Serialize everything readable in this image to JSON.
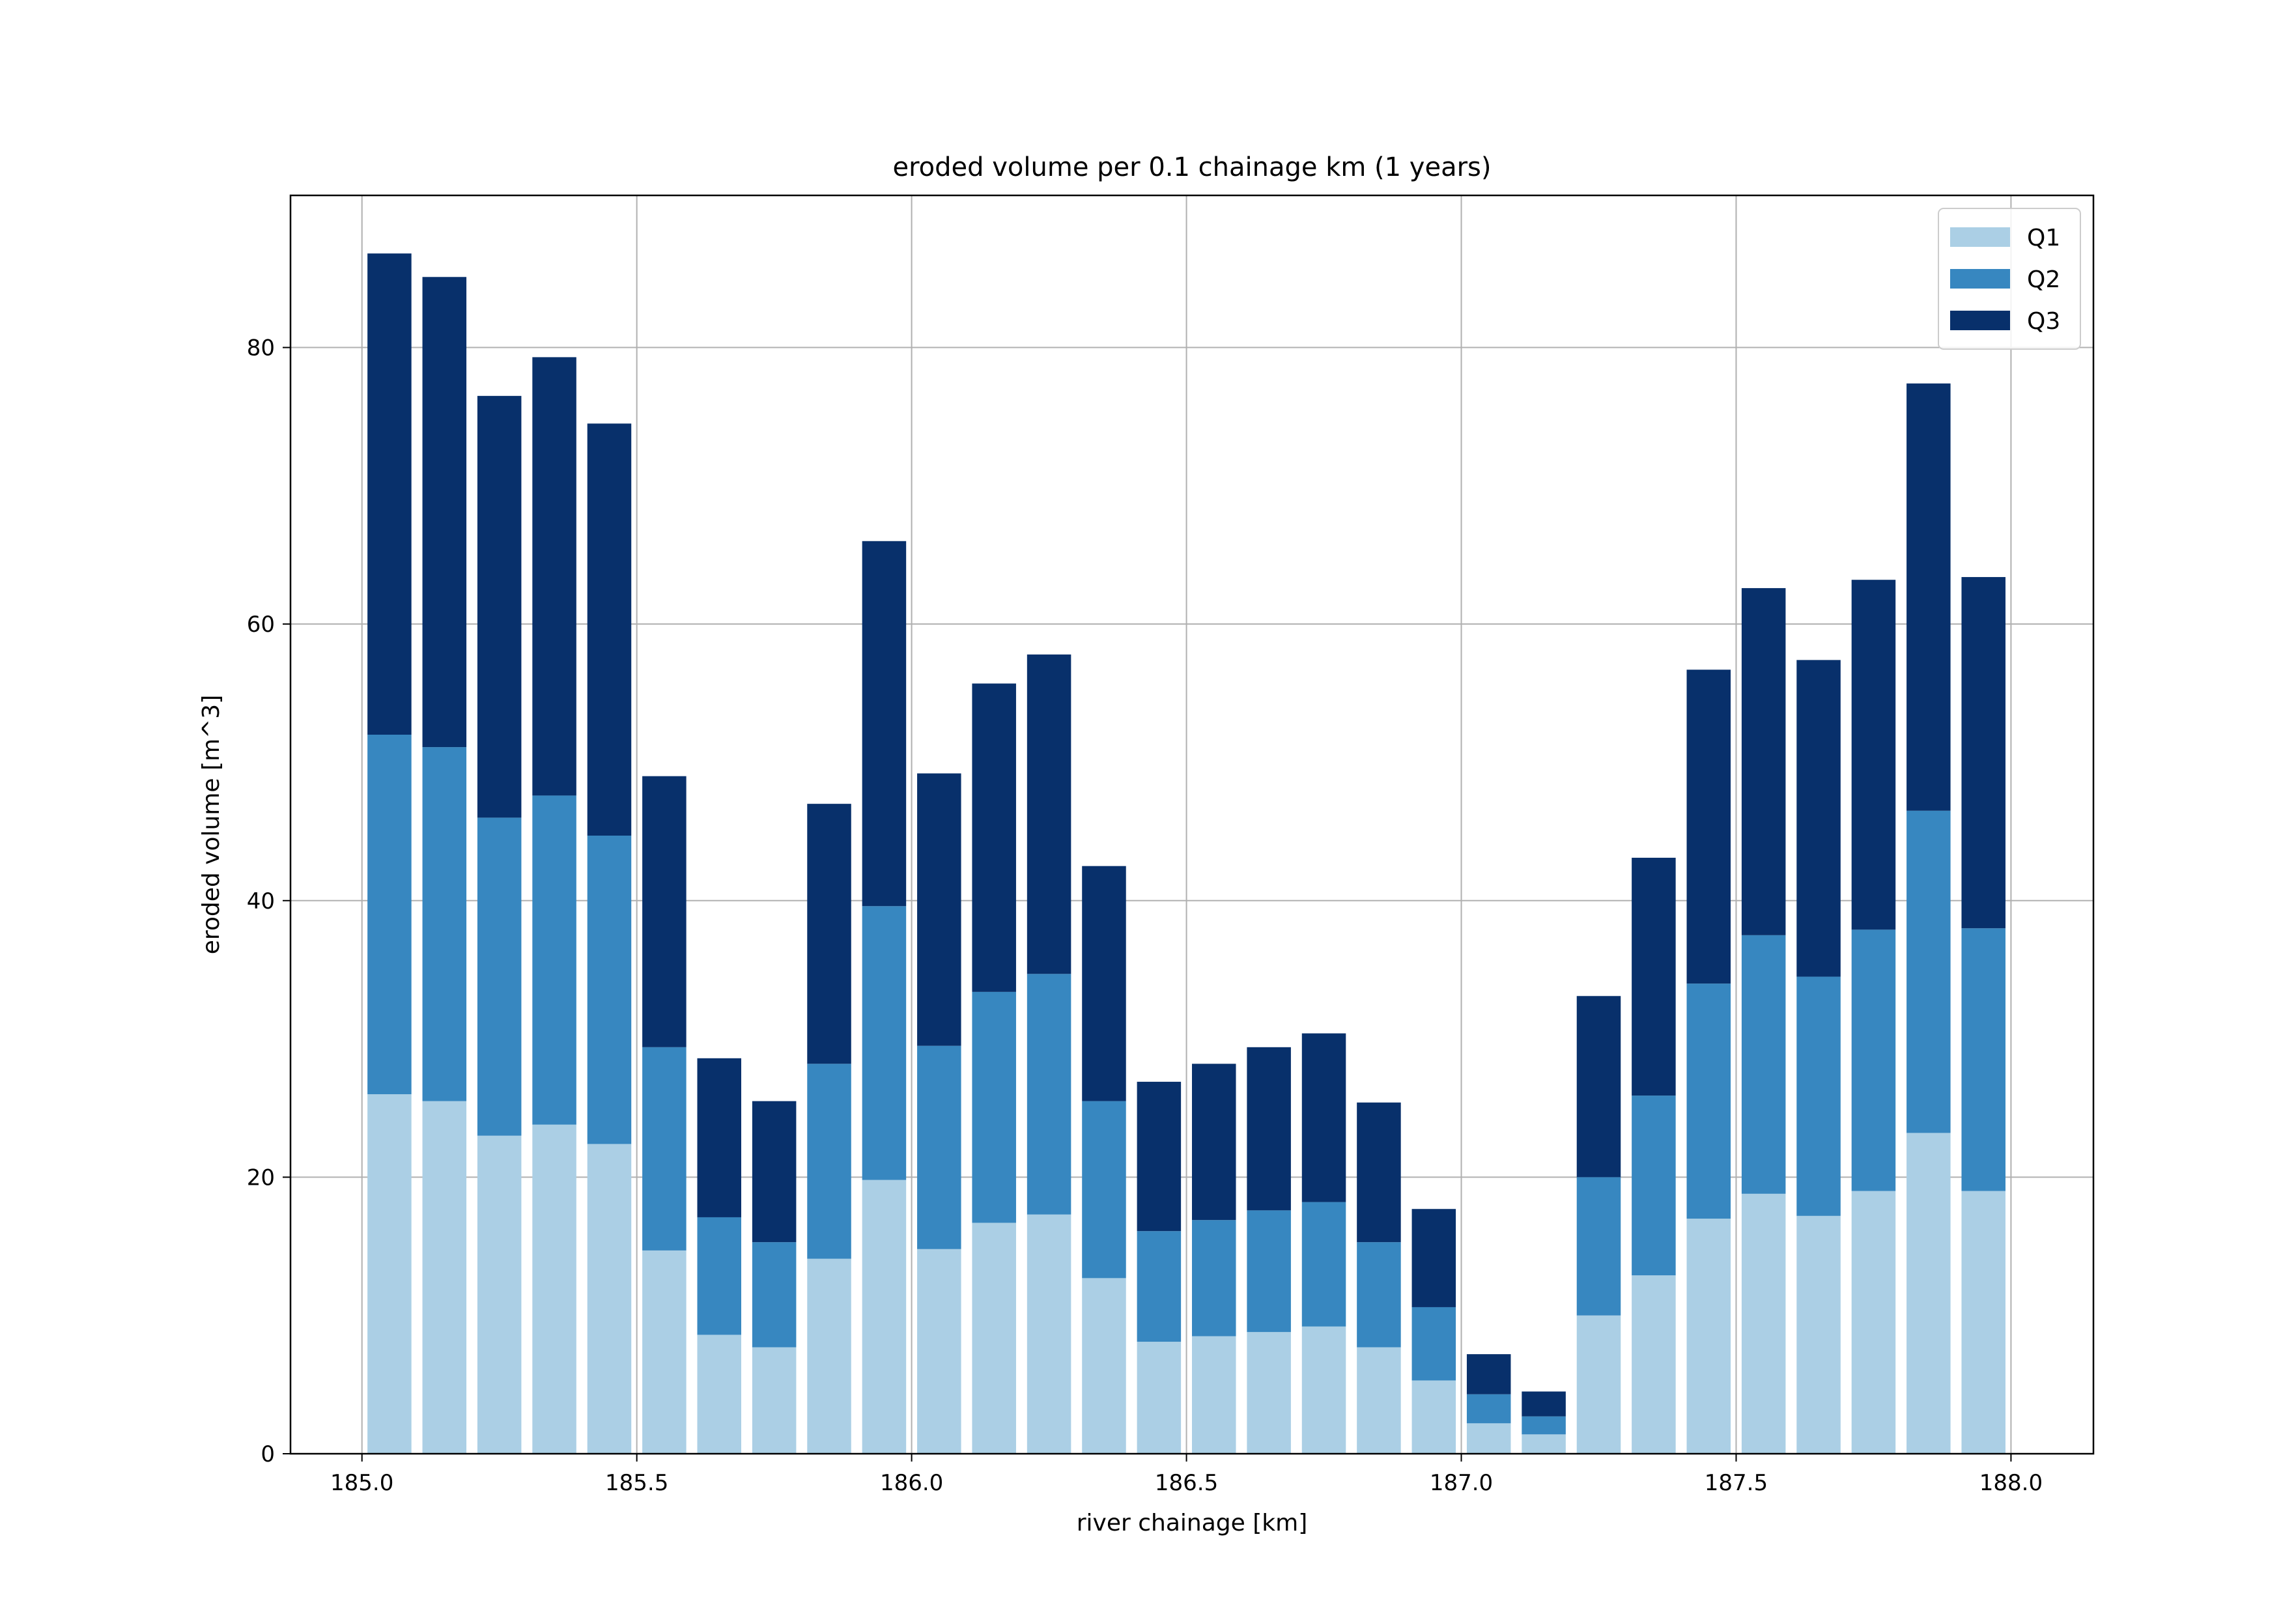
{
  "chart_data": {
    "type": "bar",
    "stacked": true,
    "title": "eroded volume per 0.1 chainage km (1 years)",
    "xlabel": "river chainage [km]",
    "ylabel": "eroded volume [m^3]",
    "xlim": [
      184.87,
      188.15
    ],
    "ylim": [
      0,
      91
    ],
    "xticks": [
      185.0,
      185.5,
      186.0,
      186.5,
      187.0,
      187.5,
      188.0
    ],
    "xtick_labels": [
      "185.0",
      "185.5",
      "186.0",
      "186.5",
      "187.0",
      "187.5",
      "188.0"
    ],
    "yticks": [
      0,
      20,
      40,
      60,
      80
    ],
    "ytick_labels": [
      "0",
      "20",
      "40",
      "60",
      "80"
    ],
    "grid": true,
    "legend_position": "top-right",
    "bar_width_km": 0.08,
    "x": [
      185.05,
      185.15,
      185.25,
      185.35,
      185.45,
      185.55,
      185.65,
      185.75,
      185.85,
      185.95,
      186.05,
      186.15,
      186.25,
      186.35,
      186.45,
      186.55,
      186.65,
      186.75,
      186.85,
      186.95,
      187.05,
      187.15,
      187.25,
      187.35,
      187.45,
      187.55,
      187.65,
      187.75,
      187.85,
      187.95
    ],
    "series": [
      {
        "name": "Q1",
        "color": "#abcfe5",
        "values": [
          26.0,
          25.5,
          23.0,
          23.8,
          22.4,
          14.7,
          8.6,
          7.7,
          14.1,
          19.8,
          14.8,
          16.7,
          17.3,
          12.7,
          8.1,
          8.5,
          8.8,
          9.2,
          7.7,
          5.3,
          2.2,
          1.4,
          10.0,
          12.9,
          17.0,
          18.8,
          17.2,
          19.0,
          23.2,
          19.0
        ]
      },
      {
        "name": "Q2",
        "color": "#3787c0",
        "values": [
          26.0,
          25.6,
          23.0,
          23.8,
          22.3,
          14.7,
          8.5,
          7.6,
          14.1,
          19.8,
          14.7,
          16.7,
          17.4,
          12.8,
          8.0,
          8.4,
          8.8,
          9.0,
          7.6,
          5.3,
          2.1,
          1.3,
          10.0,
          13.0,
          17.0,
          18.7,
          17.3,
          18.9,
          23.3,
          19.0
        ]
      },
      {
        "name": "Q3",
        "color": "#08306b",
        "values": [
          34.8,
          34.0,
          30.5,
          31.7,
          29.8,
          19.6,
          11.5,
          10.2,
          18.8,
          26.4,
          19.7,
          22.3,
          23.1,
          17.0,
          10.8,
          11.3,
          11.8,
          12.2,
          10.1,
          7.1,
          2.9,
          1.8,
          13.1,
          17.2,
          22.7,
          25.1,
          22.9,
          25.3,
          30.9,
          25.4
        ]
      }
    ]
  }
}
